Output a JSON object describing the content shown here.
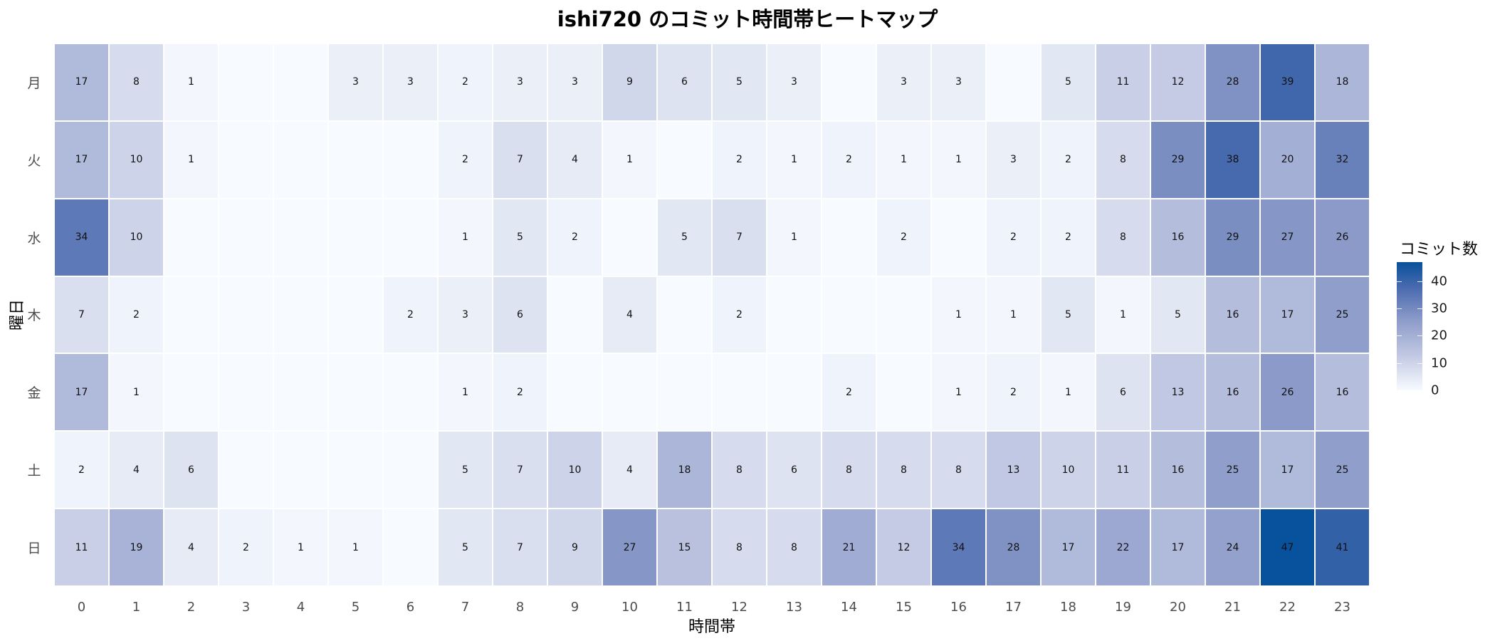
{
  "chart_data": {
    "type": "heatmap",
    "title": "ishi720 のコミット時間帯ヒートマップ",
    "xlabel": "時間帯",
    "ylabel": "曜日",
    "x": [
      "0",
      "1",
      "2",
      "3",
      "4",
      "5",
      "6",
      "7",
      "8",
      "9",
      "10",
      "11",
      "12",
      "13",
      "14",
      "15",
      "16",
      "17",
      "18",
      "19",
      "20",
      "21",
      "22",
      "23"
    ],
    "y": [
      "月",
      "火",
      "水",
      "木",
      "金",
      "土",
      "日"
    ],
    "values": [
      [
        17,
        8,
        1,
        0,
        0,
        3,
        3,
        2,
        3,
        3,
        9,
        6,
        5,
        3,
        0,
        3,
        3,
        0,
        5,
        11,
        12,
        28,
        39,
        18
      ],
      [
        17,
        10,
        1,
        0,
        0,
        0,
        0,
        2,
        7,
        4,
        1,
        0,
        2,
        1,
        2,
        1,
        1,
        3,
        2,
        8,
        29,
        38,
        20,
        32
      ],
      [
        34,
        10,
        0,
        0,
        0,
        0,
        0,
        1,
        5,
        2,
        0,
        5,
        7,
        1,
        0,
        2,
        0,
        2,
        2,
        8,
        16,
        29,
        27,
        26
      ],
      [
        7,
        2,
        0,
        0,
        0,
        0,
        2,
        3,
        6,
        0,
        4,
        0,
        2,
        0,
        0,
        0,
        1,
        1,
        5,
        1,
        5,
        16,
        17,
        25
      ],
      [
        17,
        1,
        0,
        0,
        0,
        0,
        0,
        1,
        2,
        0,
        0,
        0,
        0,
        0,
        2,
        0,
        1,
        2,
        1,
        6,
        13,
        16,
        26,
        16
      ],
      [
        2,
        4,
        6,
        0,
        0,
        0,
        0,
        5,
        7,
        10,
        4,
        18,
        8,
        6,
        8,
        8,
        8,
        13,
        10,
        11,
        16,
        25,
        17,
        25
      ],
      [
        11,
        19,
        4,
        2,
        1,
        1,
        0,
        5,
        7,
        9,
        27,
        15,
        8,
        8,
        21,
        12,
        34,
        28,
        17,
        22,
        17,
        24,
        47,
        41
      ]
    ],
    "zero_label_hidden": true,
    "legend": {
      "title": "コミット数",
      "ticks": [
        0,
        10,
        20,
        30,
        40
      ],
      "range": [
        0,
        47
      ],
      "low_color": "#f7fbff",
      "high_color": "#08519c",
      "position": "right"
    },
    "grid": false
  }
}
